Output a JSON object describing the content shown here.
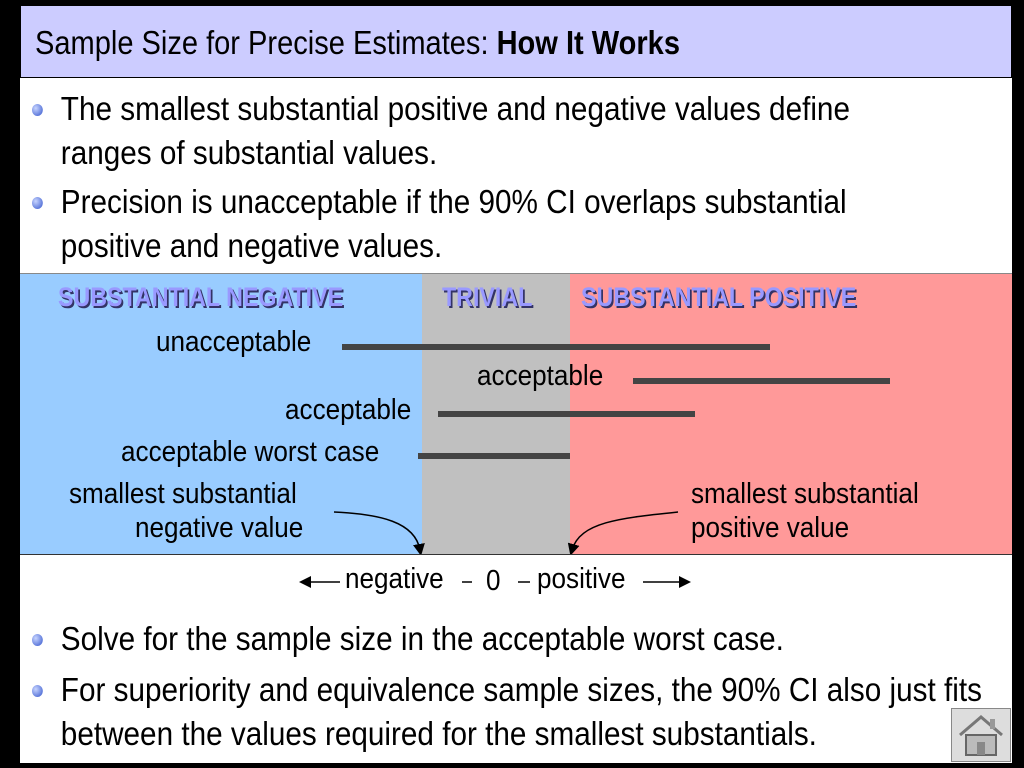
{
  "title": {
    "main": "Sample Size for Precise Estimates: ",
    "bold": "How It Works"
  },
  "bullets_top": [
    "The smallest substantial positive and negative values define ranges of substantial values.",
    "Precision is unacceptable if the 90% CI overlaps substantial positive and negative values."
  ],
  "zones": {
    "negative": "SUBSTANTIAL NEGATIVE",
    "trivial": "TRIVIAL",
    "positive": "SUBSTANTIAL POSITIVE"
  },
  "intervals": {
    "unacceptable": "unacceptable",
    "acceptable_positive": "acceptable",
    "acceptable": "acceptable",
    "worst_case": "acceptable worst case"
  },
  "annotations": {
    "neg_line1": "smallest substantial",
    "neg_line2": "negative value",
    "pos_line1": "smallest substantial",
    "pos_line2": "positive value"
  },
  "axis": {
    "negative": "negative",
    "zero": "0",
    "positive": "positive"
  },
  "bullets_bottom": [
    "Solve for the sample size in the acceptable worst case.",
    "For superiority and equivalence sample sizes, the 90% CI also just fits between the values required for the smallest substantials."
  ],
  "colors": {
    "title_bg": "#ccccff",
    "negative_zone": "#99ccff",
    "trivial_zone": "#c0c0c0",
    "positive_zone": "#ff9999"
  },
  "icons": {
    "home": "home-icon"
  }
}
